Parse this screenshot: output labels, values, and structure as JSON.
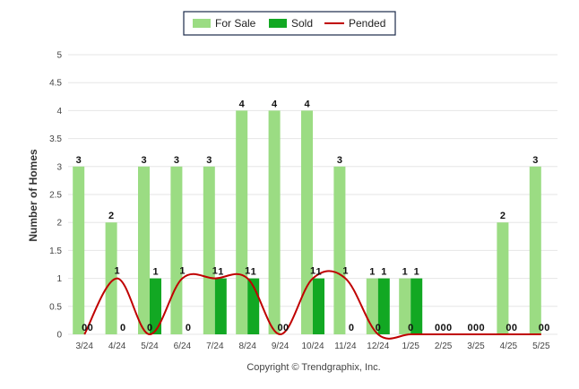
{
  "chart_data": {
    "type": "bar",
    "ylabel": "Number of Homes",
    "ylim": [
      0,
      5
    ],
    "yticks": [
      "0",
      "0.5",
      "1",
      "1.5",
      "2",
      "2.5",
      "3",
      "3.5",
      "4",
      "4.5",
      "5"
    ],
    "categories": [
      "3/24",
      "4/24",
      "5/24",
      "6/24",
      "7/24",
      "8/24",
      "9/24",
      "10/24",
      "11/24",
      "12/24",
      "1/25",
      "2/25",
      "3/25",
      "4/25",
      "5/25"
    ],
    "series": [
      {
        "name": "For Sale",
        "kind": "bar",
        "color": "#9bdc83",
        "values": [
          3,
          2,
          3,
          3,
          3,
          4,
          4,
          4,
          3,
          1,
          1,
          0,
          0,
          2,
          3
        ]
      },
      {
        "name": "Sold",
        "kind": "bar",
        "color": "#12a823",
        "values": [
          0,
          0,
          1,
          0,
          1,
          1,
          0,
          1,
          0,
          1,
          1,
          0,
          0,
          0,
          0
        ]
      },
      {
        "name": "Pended",
        "kind": "line",
        "color": "#c00000",
        "values": [
          0,
          1,
          0,
          1,
          1,
          1,
          0,
          1,
          1,
          0,
          0,
          0,
          0,
          0,
          0
        ]
      }
    ],
    "legend": "top-center",
    "grid": true
  },
  "footer": {
    "copyright": "Copyright © Trendgraphix, Inc."
  }
}
